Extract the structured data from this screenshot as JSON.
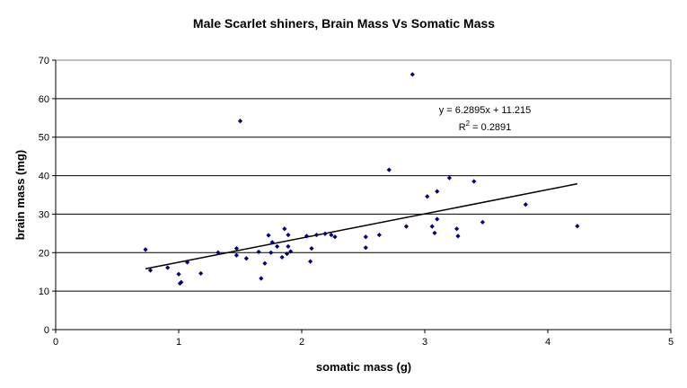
{
  "chart_data": {
    "type": "scatter",
    "title": "Male Scarlet shiners, Brain Mass Vs Somatic Mass",
    "xlabel": "somatic mass (g)",
    "ylabel": "brain mass (mg)",
    "xlim": [
      0,
      5
    ],
    "ylim": [
      0,
      70
    ],
    "xticks": [
      "0",
      "1",
      "2",
      "3",
      "4",
      "5"
    ],
    "yticks": [
      "0",
      "10",
      "20",
      "30",
      "40",
      "50",
      "60",
      "70"
    ],
    "grid": "horizontal",
    "marker_color": "#000080",
    "trendline": {
      "slope": 6.2895,
      "intercept": 11.215,
      "x_range": [
        0.73,
        4.24
      ],
      "equation": "y = 6.2895x + 11.215",
      "r2_label": "R",
      "r2_sup": "2",
      "r2_value": " = 0.2891"
    },
    "points": [
      {
        "x": 0.73,
        "y": 20.8
      },
      {
        "x": 0.77,
        "y": 15.4
      },
      {
        "x": 0.91,
        "y": 16.1
      },
      {
        "x": 1.0,
        "y": 14.4
      },
      {
        "x": 1.01,
        "y": 12.0
      },
      {
        "x": 1.02,
        "y": 12.3
      },
      {
        "x": 1.07,
        "y": 17.5
      },
      {
        "x": 1.18,
        "y": 14.6
      },
      {
        "x": 1.32,
        "y": 20.0
      },
      {
        "x": 1.47,
        "y": 19.3
      },
      {
        "x": 1.47,
        "y": 21.1
      },
      {
        "x": 1.5,
        "y": 54.2
      },
      {
        "x": 1.55,
        "y": 18.5
      },
      {
        "x": 1.65,
        "y": 20.2
      },
      {
        "x": 1.67,
        "y": 13.3
      },
      {
        "x": 1.7,
        "y": 17.2
      },
      {
        "x": 1.73,
        "y": 24.5
      },
      {
        "x": 1.75,
        "y": 20.0
      },
      {
        "x": 1.76,
        "y": 22.7
      },
      {
        "x": 1.8,
        "y": 21.6
      },
      {
        "x": 1.84,
        "y": 18.8
      },
      {
        "x": 1.86,
        "y": 26.2
      },
      {
        "x": 1.88,
        "y": 19.7
      },
      {
        "x": 1.89,
        "y": 21.6
      },
      {
        "x": 1.89,
        "y": 24.6
      },
      {
        "x": 1.91,
        "y": 20.3
      },
      {
        "x": 2.04,
        "y": 24.3
      },
      {
        "x": 2.07,
        "y": 17.7
      },
      {
        "x": 2.08,
        "y": 21.1
      },
      {
        "x": 2.12,
        "y": 24.6
      },
      {
        "x": 2.19,
        "y": 24.9
      },
      {
        "x": 2.24,
        "y": 24.6
      },
      {
        "x": 2.27,
        "y": 24.1
      },
      {
        "x": 2.52,
        "y": 24.1
      },
      {
        "x": 2.52,
        "y": 21.3
      },
      {
        "x": 2.63,
        "y": 24.6
      },
      {
        "x": 2.71,
        "y": 41.5
      },
      {
        "x": 2.85,
        "y": 26.8
      },
      {
        "x": 2.9,
        "y": 66.3
      },
      {
        "x": 3.02,
        "y": 34.6
      },
      {
        "x": 3.06,
        "y": 26.8
      },
      {
        "x": 3.08,
        "y": 25.1
      },
      {
        "x": 3.1,
        "y": 28.7
      },
      {
        "x": 3.1,
        "y": 35.9
      },
      {
        "x": 3.2,
        "y": 39.4
      },
      {
        "x": 3.26,
        "y": 26.2
      },
      {
        "x": 3.27,
        "y": 24.3
      },
      {
        "x": 3.4,
        "y": 38.5
      },
      {
        "x": 3.47,
        "y": 27.9
      },
      {
        "x": 3.82,
        "y": 32.5
      },
      {
        "x": 4.24,
        "y": 26.9
      }
    ]
  }
}
